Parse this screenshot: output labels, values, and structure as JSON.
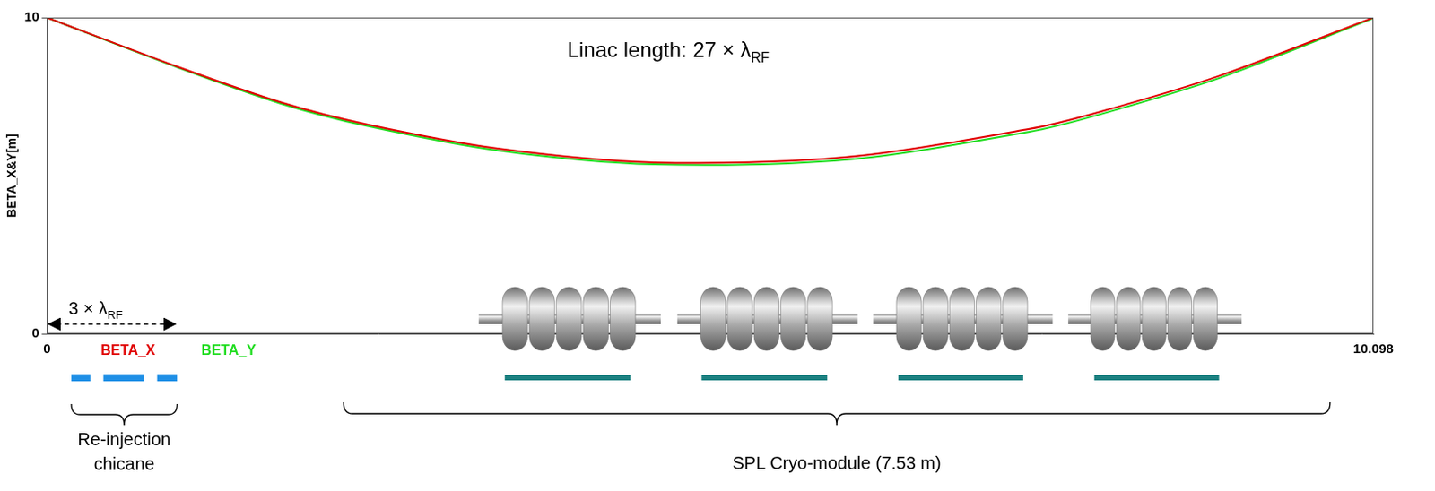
{
  "chart_data": {
    "type": "line",
    "y_label": "BETA_X&Y[m]",
    "x": [
      0,
      0.99,
      1.78,
      2.44,
      3.43,
      4.62,
      6.07,
      7.47,
      8.0,
      8.92,
      10.098
    ],
    "series": [
      {
        "name": "BETA_X",
        "color": "#e00000",
        "values": [
          10,
          8.45,
          7.32,
          6.62,
          5.86,
          5.42,
          5.58,
          6.47,
          7.0,
          8.15,
          10
        ]
      },
      {
        "name": "BETA_Y",
        "color": "#22dd22",
        "values": [
          10,
          8.43,
          7.28,
          6.57,
          5.8,
          5.36,
          5.5,
          6.38,
          6.92,
          8.08,
          9.98
        ]
      },
      {
        "color": "#1a1a8c",
        "values": [
          0,
          0,
          0,
          0,
          0,
          0,
          0,
          0,
          0,
          0,
          0
        ]
      }
    ],
    "xlim": [
      0,
      10.098
    ],
    "xticks": [
      0,
      10.098
    ],
    "ylim": [
      0,
      10
    ],
    "yticks": [
      0,
      10
    ],
    "grid": false,
    "legend": "bottom",
    "annotations": {
      "linac_length": {
        "text": "Linac length: 27 × λ",
        "sub": "RF"
      },
      "chicane_span": {
        "text": "3 × λ",
        "sub": "RF"
      },
      "chicane_label": "Re-injection chicane",
      "cryomodule_label": "SPL Cryo-module (7.53 m)"
    }
  }
}
